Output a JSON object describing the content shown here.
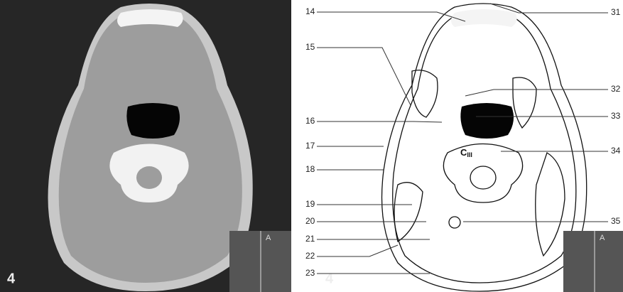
{
  "panels": [
    {
      "label": "4",
      "inset_label": "A"
    },
    {
      "label": "4",
      "inset_label": "A"
    }
  ],
  "vertebra": {
    "letter": "C",
    "level": "III"
  },
  "left_labels": [
    "14",
    "15",
    "16",
    "17",
    "18",
    "19",
    "20",
    "21",
    "22",
    "23"
  ],
  "right_labels": [
    "31",
    "32",
    "33",
    "34",
    "35"
  ]
}
